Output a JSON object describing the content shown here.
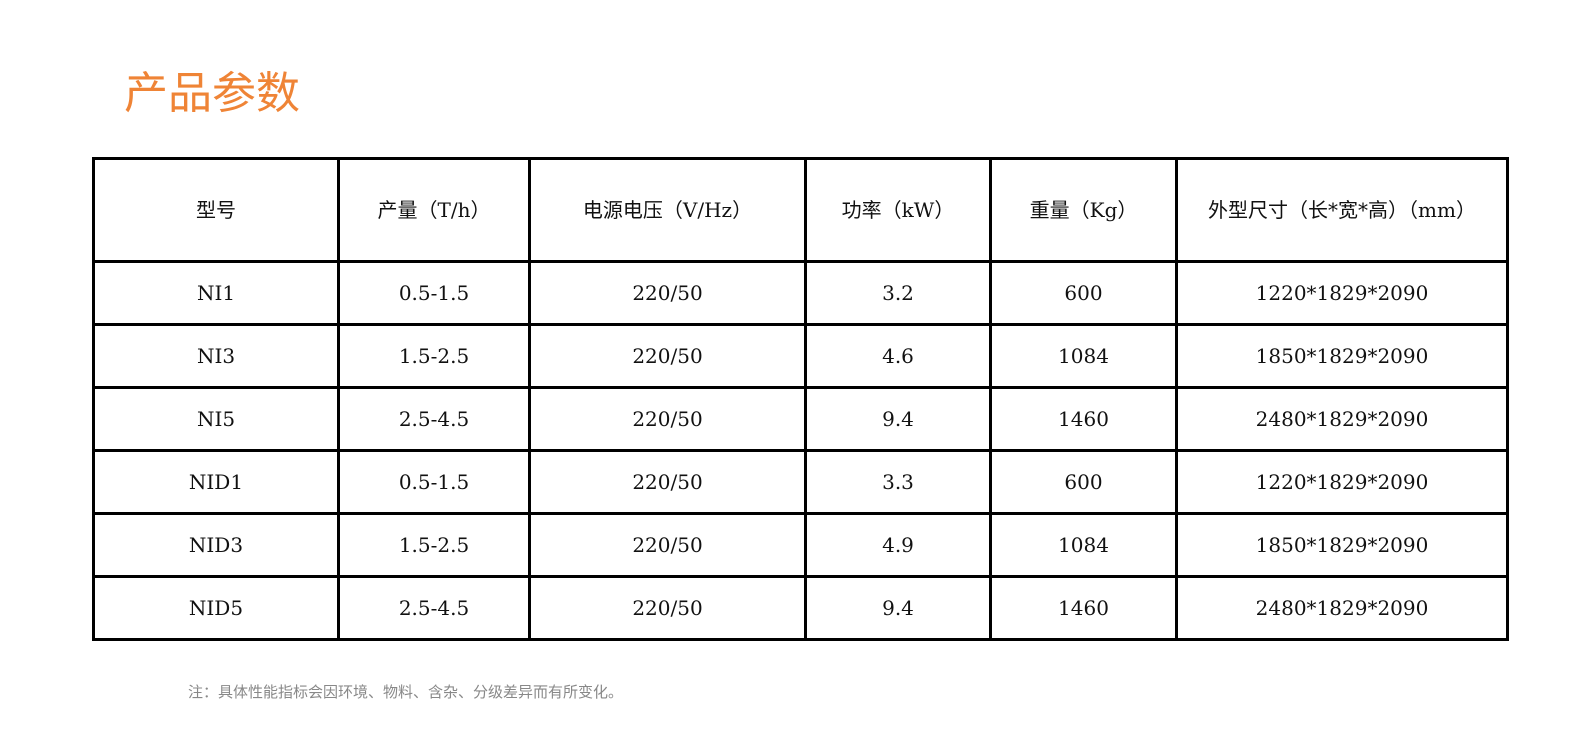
{
  "title": "产品参数",
  "headers": [
    "型号",
    "产量（T/h）",
    "电源电压（V/Hz）",
    "功率（kW）",
    "重量（Kg）",
    "外型尺寸（长*宽*高）（mm）"
  ],
  "rows": [
    [
      "NI1",
      "0.5-1.5",
      "220/50",
      "3.2",
      "600",
      "1220*1829*2090"
    ],
    [
      "NI3",
      "1.5-2.5",
      "220/50",
      "4.6",
      "1084",
      "1850*1829*2090"
    ],
    [
      "NI5",
      "2.5-4.5",
      "220/50",
      "9.4",
      "1460",
      "2480*1829*2090"
    ],
    [
      "NID1",
      "0.5-1.5",
      "220/50",
      "3.3",
      "600",
      "1220*1829*2090"
    ],
    [
      "NID3",
      "1.5-2.5",
      "220/50",
      "4.9",
      "1084",
      "1850*1829*2090"
    ],
    [
      "NID5",
      "2.5-4.5",
      "220/50",
      "9.4",
      "1460",
      "2480*1829*2090"
    ]
  ],
  "note": "注：具体性能指标会因环境、物料、含杂、分级差异而有所变化。",
  "colors": {
    "title": "#ef8436"
  }
}
